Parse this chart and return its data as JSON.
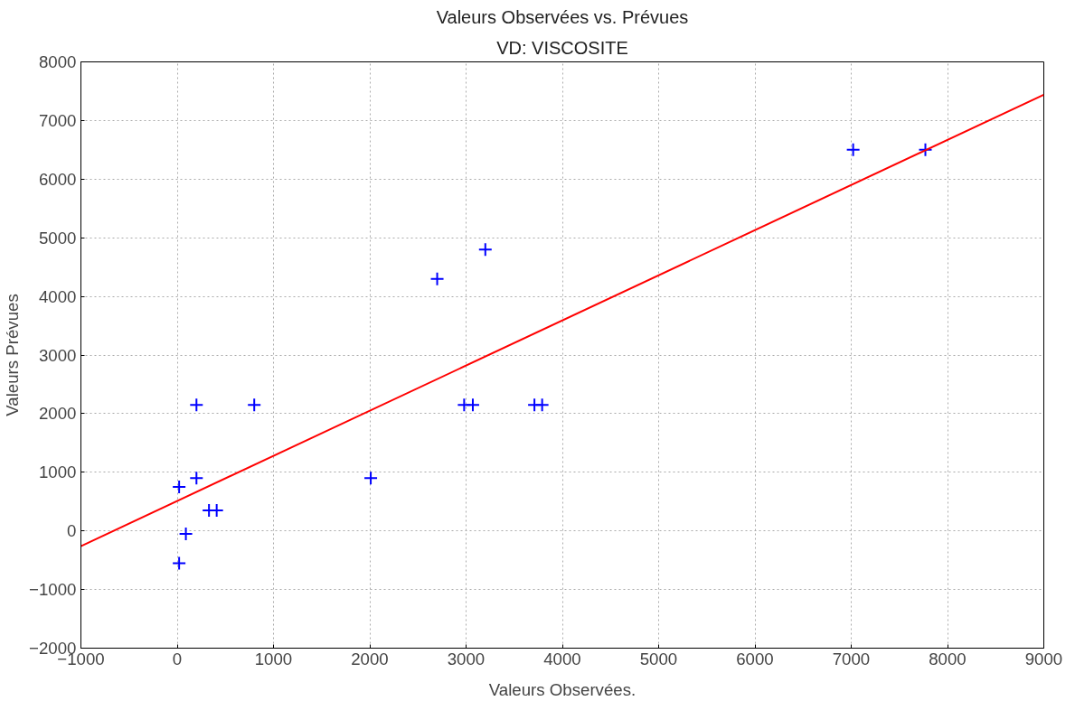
{
  "chart_data": {
    "type": "scatter",
    "title": "Valeurs Observées vs. Prévues",
    "subtitle": "VD: VISCOSITE",
    "xlabel": "Valeurs Observées.",
    "ylabel": "Valeurs Prévues",
    "xlim": [
      -1000,
      9000
    ],
    "ylim": [
      -2000,
      8000
    ],
    "xticks": [
      -1000,
      0,
      1000,
      2000,
      3000,
      4000,
      5000,
      6000,
      7000,
      8000,
      9000
    ],
    "yticks": [
      -2000,
      -1000,
      0,
      1000,
      2000,
      3000,
      4000,
      5000,
      6000,
      7000,
      8000
    ],
    "grid": true,
    "series": [
      {
        "marker": "cross",
        "color": "#0000ff",
        "x": [
          20,
          20,
          90,
          200,
          200,
          330,
          410,
          800,
          2010,
          2700,
          3200,
          2980,
          3070,
          3710,
          3790,
          7020,
          7770
        ],
        "values": [
          750,
          -550,
          -50,
          2150,
          900,
          350,
          350,
          2150,
          900,
          4300,
          4800,
          2150,
          2150,
          2150,
          2150,
          6500,
          6500
        ]
      },
      {
        "type": "line",
        "marker": "none",
        "color": "#ff0000",
        "x": [
          -1000,
          9000
        ],
        "values": [
          -260,
          7440
        ]
      }
    ]
  }
}
